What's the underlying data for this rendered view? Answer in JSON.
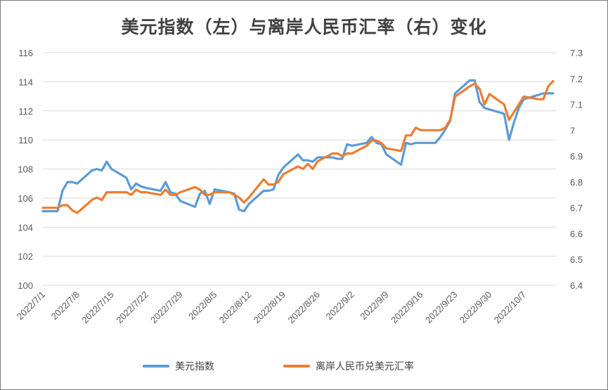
{
  "chart_data": {
    "type": "line",
    "title": "美元指数（左）与离岸人民币汇率（右）变化",
    "left_axis": {
      "min": 100,
      "max": 116,
      "step": 2,
      "labels": [
        "100",
        "102",
        "104",
        "106",
        "108",
        "110",
        "112",
        "114",
        "116"
      ]
    },
    "right_axis": {
      "min": 6.4,
      "max": 7.3,
      "step": 0.1,
      "labels": [
        "6.4",
        "6.5",
        "6.6",
        "6.7",
        "6.8",
        "6.9",
        "7",
        "7.1",
        "7.2",
        "7.3"
      ]
    },
    "x_tick_labels": [
      "2022/7/1",
      "2022/7/8",
      "2022/7/15",
      "2022/7/22",
      "2022/7/29",
      "2022/8/5",
      "2022/8/12",
      "2022/8/19",
      "2022/8/26",
      "2022/9/2",
      "2022/9/9",
      "2022/9/16",
      "2022/9/23",
      "2022/9/30",
      "2022/10/7"
    ],
    "grid": true,
    "legend_position": "bottom",
    "series": [
      {
        "name": "美元指数",
        "axis": "left",
        "color": "#5b9bd5",
        "points": [
          [
            "2022/7/1",
            105.1
          ],
          [
            "2022/7/4",
            105.1
          ],
          [
            "2022/7/5",
            106.5
          ],
          [
            "2022/7/6",
            107.1
          ],
          [
            "2022/7/7",
            107.1
          ],
          [
            "2022/7/8",
            107.0
          ],
          [
            "2022/7/11",
            107.9
          ],
          [
            "2022/7/12",
            108.0
          ],
          [
            "2022/7/13",
            107.9
          ],
          [
            "2022/7/14",
            108.5
          ],
          [
            "2022/7/15",
            108.0
          ],
          [
            "2022/7/18",
            107.4
          ],
          [
            "2022/7/19",
            106.6
          ],
          [
            "2022/7/20",
            107.0
          ],
          [
            "2022/7/21",
            106.8
          ],
          [
            "2022/7/22",
            106.7
          ],
          [
            "2022/7/25",
            106.5
          ],
          [
            "2022/7/26",
            107.1
          ],
          [
            "2022/7/27",
            106.4
          ],
          [
            "2022/7/28",
            106.3
          ],
          [
            "2022/7/29",
            105.8
          ],
          [
            "2022/8/1",
            105.4
          ],
          [
            "2022/8/2",
            106.3
          ],
          [
            "2022/8/3",
            106.5
          ],
          [
            "2022/8/4",
            105.6
          ],
          [
            "2022/8/5",
            106.6
          ],
          [
            "2022/8/8",
            106.4
          ],
          [
            "2022/8/9",
            106.3
          ],
          [
            "2022/8/10",
            105.2
          ],
          [
            "2022/8/11",
            105.1
          ],
          [
            "2022/8/12",
            105.6
          ],
          [
            "2022/8/15",
            106.5
          ],
          [
            "2022/8/16",
            106.5
          ],
          [
            "2022/8/17",
            106.6
          ],
          [
            "2022/8/18",
            107.6
          ],
          [
            "2022/8/19",
            108.1
          ],
          [
            "2022/8/22",
            109.0
          ],
          [
            "2022/8/23",
            108.6
          ],
          [
            "2022/8/24",
            108.6
          ],
          [
            "2022/8/25",
            108.5
          ],
          [
            "2022/8/26",
            108.8
          ],
          [
            "2022/8/29",
            108.8
          ],
          [
            "2022/8/30",
            108.7
          ],
          [
            "2022/8/31",
            108.7
          ],
          [
            "2022/9/1",
            109.7
          ],
          [
            "2022/9/2",
            109.6
          ],
          [
            "2022/9/5",
            109.8
          ],
          [
            "2022/9/6",
            110.2
          ],
          [
            "2022/9/7",
            109.8
          ],
          [
            "2022/9/8",
            109.7
          ],
          [
            "2022/9/9",
            109.0
          ],
          [
            "2022/9/12",
            108.3
          ],
          [
            "2022/9/13",
            109.8
          ],
          [
            "2022/9/14",
            109.7
          ],
          [
            "2022/9/15",
            109.8
          ],
          [
            "2022/9/16",
            109.8
          ],
          [
            "2022/9/19",
            109.8
          ],
          [
            "2022/9/20",
            110.2
          ],
          [
            "2022/9/21",
            110.7
          ],
          [
            "2022/9/22",
            111.3
          ],
          [
            "2022/9/23",
            113.2
          ],
          [
            "2022/9/26",
            114.1
          ],
          [
            "2022/9/27",
            114.1
          ],
          [
            "2022/9/28",
            112.6
          ],
          [
            "2022/9/29",
            112.2
          ],
          [
            "2022/9/30",
            112.1
          ],
          [
            "2022/10/3",
            111.8
          ],
          [
            "2022/10/4",
            110.0
          ],
          [
            "2022/10/5",
            111.2
          ],
          [
            "2022/10/6",
            112.2
          ],
          [
            "2022/10/7",
            112.8
          ],
          [
            "2022/10/10",
            113.1
          ],
          [
            "2022/10/11",
            113.2
          ],
          [
            "2022/10/12",
            113.2
          ],
          [
            "2022/10/13",
            113.2
          ]
        ]
      },
      {
        "name": "离岸人民币兑美元汇率",
        "axis": "right",
        "color": "#ed7d31",
        "points": [
          [
            "2022/7/1",
            6.7
          ],
          [
            "2022/7/4",
            6.7
          ],
          [
            "2022/7/5",
            6.71
          ],
          [
            "2022/7/6",
            6.71
          ],
          [
            "2022/7/7",
            6.69
          ],
          [
            "2022/7/8",
            6.68
          ],
          [
            "2022/7/11",
            6.73
          ],
          [
            "2022/7/12",
            6.74
          ],
          [
            "2022/7/13",
            6.73
          ],
          [
            "2022/7/14",
            6.76
          ],
          [
            "2022/7/15",
            6.76
          ],
          [
            "2022/7/18",
            6.76
          ],
          [
            "2022/7/19",
            6.75
          ],
          [
            "2022/7/20",
            6.77
          ],
          [
            "2022/7/21",
            6.76
          ],
          [
            "2022/7/22",
            6.76
          ],
          [
            "2022/7/25",
            6.75
          ],
          [
            "2022/7/26",
            6.77
          ],
          [
            "2022/7/27",
            6.75
          ],
          [
            "2022/7/28",
            6.75
          ],
          [
            "2022/7/29",
            6.76
          ],
          [
            "2022/8/1",
            6.78
          ],
          [
            "2022/8/2",
            6.77
          ],
          [
            "2022/8/3",
            6.75
          ],
          [
            "2022/8/4",
            6.75
          ],
          [
            "2022/8/5",
            6.76
          ],
          [
            "2022/8/8",
            6.76
          ],
          [
            "2022/8/9",
            6.75
          ],
          [
            "2022/8/10",
            6.74
          ],
          [
            "2022/8/11",
            6.72
          ],
          [
            "2022/8/12",
            6.74
          ],
          [
            "2022/8/15",
            6.81
          ],
          [
            "2022/8/16",
            6.79
          ],
          [
            "2022/8/17",
            6.79
          ],
          [
            "2022/8/18",
            6.8
          ],
          [
            "2022/8/19",
            6.83
          ],
          [
            "2022/8/22",
            6.86
          ],
          [
            "2022/8/23",
            6.85
          ],
          [
            "2022/8/24",
            6.87
          ],
          [
            "2022/8/25",
            6.85
          ],
          [
            "2022/8/26",
            6.88
          ],
          [
            "2022/8/29",
            6.91
          ],
          [
            "2022/8/30",
            6.91
          ],
          [
            "2022/8/31",
            6.9
          ],
          [
            "2022/9/1",
            6.91
          ],
          [
            "2022/9/2",
            6.91
          ],
          [
            "2022/9/5",
            6.94
          ],
          [
            "2022/9/6",
            6.96
          ],
          [
            "2022/9/7",
            6.96
          ],
          [
            "2022/9/8",
            6.95
          ],
          [
            "2022/9/9",
            6.93
          ],
          [
            "2022/9/12",
            6.92
          ],
          [
            "2022/9/13",
            6.98
          ],
          [
            "2022/9/14",
            6.98
          ],
          [
            "2022/9/15",
            7.01
          ],
          [
            "2022/9/16",
            7.0
          ],
          [
            "2022/9/19",
            7.0
          ],
          [
            "2022/9/20",
            7.0
          ],
          [
            "2022/9/21",
            7.01
          ],
          [
            "2022/9/22",
            7.04
          ],
          [
            "2022/9/23",
            7.13
          ],
          [
            "2022/9/26",
            7.17
          ],
          [
            "2022/9/27",
            7.18
          ],
          [
            "2022/9/28",
            7.16
          ],
          [
            "2022/9/29",
            7.1
          ],
          [
            "2022/9/30",
            7.14
          ],
          [
            "2022/10/3",
            7.1
          ],
          [
            "2022/10/4",
            7.04
          ],
          [
            "2022/10/5",
            7.07
          ],
          [
            "2022/10/6",
            7.1
          ],
          [
            "2022/10/7",
            7.13
          ],
          [
            "2022/10/10",
            7.12
          ],
          [
            "2022/10/11",
            7.12
          ],
          [
            "2022/10/12",
            7.17
          ],
          [
            "2022/10/13",
            7.19
          ]
        ]
      }
    ]
  }
}
